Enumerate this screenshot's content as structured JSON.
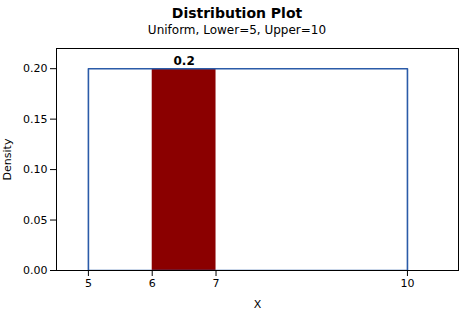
{
  "chart_data": {
    "type": "line",
    "title": "Distribution Plot",
    "subtitle": "Uniform, Lower=5, Upper=10",
    "xlabel": "X",
    "ylabel": "Density",
    "x": [
      5,
      5,
      10,
      10,
      5
    ],
    "values": [
      0,
      0.2,
      0.2,
      0,
      0
    ],
    "color": "#2B5BA8",
    "shade": {
      "x1": 6,
      "x2": 7,
      "value": 0.2,
      "color": "#8B0000"
    },
    "annotations": [
      {
        "text": "0.2"
      }
    ],
    "xlim": [
      4.5,
      10.8
    ],
    "ylim": [
      0.0,
      0.22
    ],
    "xticks": [
      5,
      6,
      7,
      10
    ],
    "yticks": [
      {
        "value": 0.0,
        "label": "0.00"
      },
      {
        "value": 0.05,
        "label": "0.05"
      },
      {
        "value": 0.1,
        "label": "0.10"
      },
      {
        "value": 0.15,
        "label": "0.15"
      },
      {
        "value": 0.2,
        "label": "0.20"
      }
    ],
    "grid": false
  }
}
